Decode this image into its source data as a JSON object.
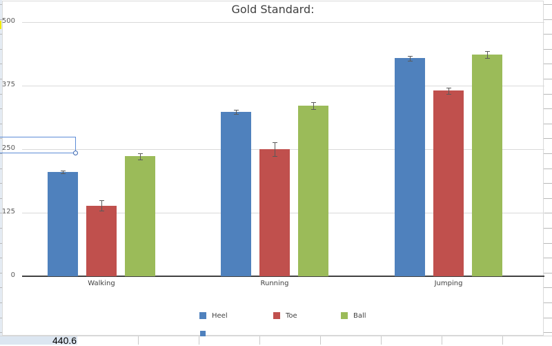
{
  "chart_data": {
    "type": "bar",
    "title": "Gold Standard:",
    "xlabel": "",
    "ylabel": "",
    "categories": [
      "Walking",
      "Running",
      "Jumping"
    ],
    "series": [
      {
        "name": "Heel",
        "color": "#4f81bd",
        "values": [
          205,
          323,
          429
        ],
        "errors": [
          3,
          4,
          5
        ]
      },
      {
        "name": "Toe",
        "color": "#c0504d",
        "values": [
          139,
          250,
          365
        ],
        "errors": [
          10,
          14,
          6
        ]
      },
      {
        "name": "Ball",
        "color": "#9bbb59",
        "values": [
          236,
          336,
          436
        ],
        "errors": [
          6,
          7,
          7
        ]
      }
    ],
    "ylim": [
      0,
      500
    ],
    "yticks": [
      0,
      125,
      250,
      375,
      500
    ],
    "grid": true,
    "legend_position": "bottom",
    "error_bars": true
  },
  "spreadsheet": {
    "visible_cell_value": "440.6"
  }
}
